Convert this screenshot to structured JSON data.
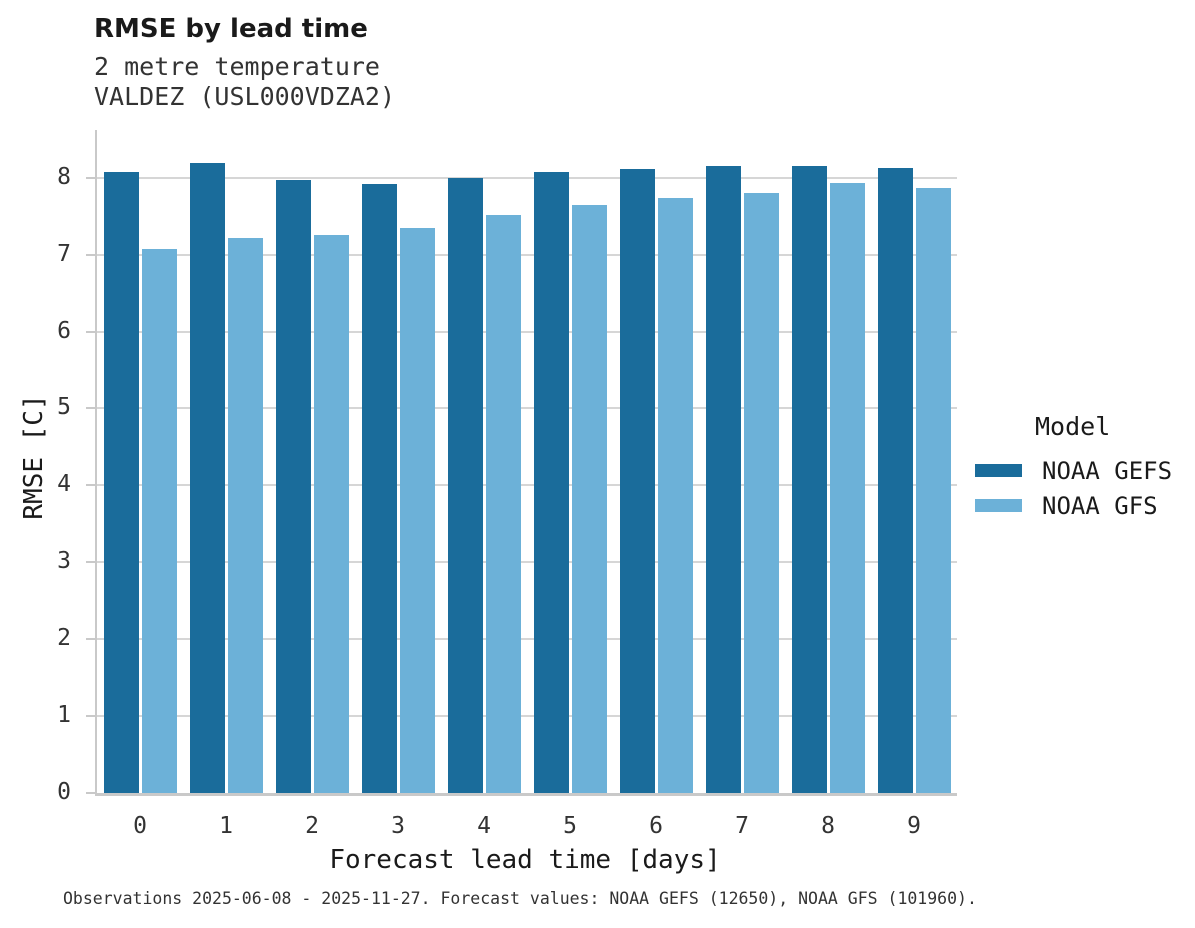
{
  "header": {
    "title": "RMSE by lead time",
    "subtitle_lines": [
      "2 metre temperature",
      "VALDEZ (USL000VDZA2)"
    ]
  },
  "legend": {
    "title": "Model"
  },
  "footer": {
    "text": "Observations 2025-06-08 - 2025-11-27. Forecast values: NOAA GEFS (12650), NOAA GFS (101960)."
  },
  "colors": {
    "gefs_bar": "#1a6c9b",
    "gfs_bar": "#6cb1d8",
    "gridline": "#d6d6d6",
    "axis": "#c9c9c9"
  },
  "chart_data": {
    "type": "bar",
    "title": "RMSE by lead time",
    "subtitle": "2 metre temperature / VALDEZ (USL000VDZA2)",
    "categories": [
      "0",
      "1",
      "2",
      "3",
      "4",
      "5",
      "6",
      "7",
      "8",
      "9"
    ],
    "series": [
      {
        "name": "NOAA GEFS",
        "color": "#1a6c9b",
        "values": [
          8.08,
          8.19,
          7.97,
          7.92,
          8.0,
          8.08,
          8.11,
          8.15,
          8.15,
          8.13
        ]
      },
      {
        "name": "NOAA GFS",
        "color": "#6cb1d8",
        "values": [
          7.07,
          7.21,
          7.25,
          7.34,
          7.51,
          7.64,
          7.74,
          7.8,
          7.93,
          7.87
        ]
      }
    ],
    "xlabel": "Forecast lead time [days]",
    "ylabel": "RMSE [C]",
    "ylim": [
      0,
      8.62
    ],
    "yticks": [
      0,
      1,
      2,
      3,
      4,
      5,
      6,
      7,
      8
    ],
    "grid": true,
    "legend_title": "Model",
    "legend_position": "right"
  }
}
